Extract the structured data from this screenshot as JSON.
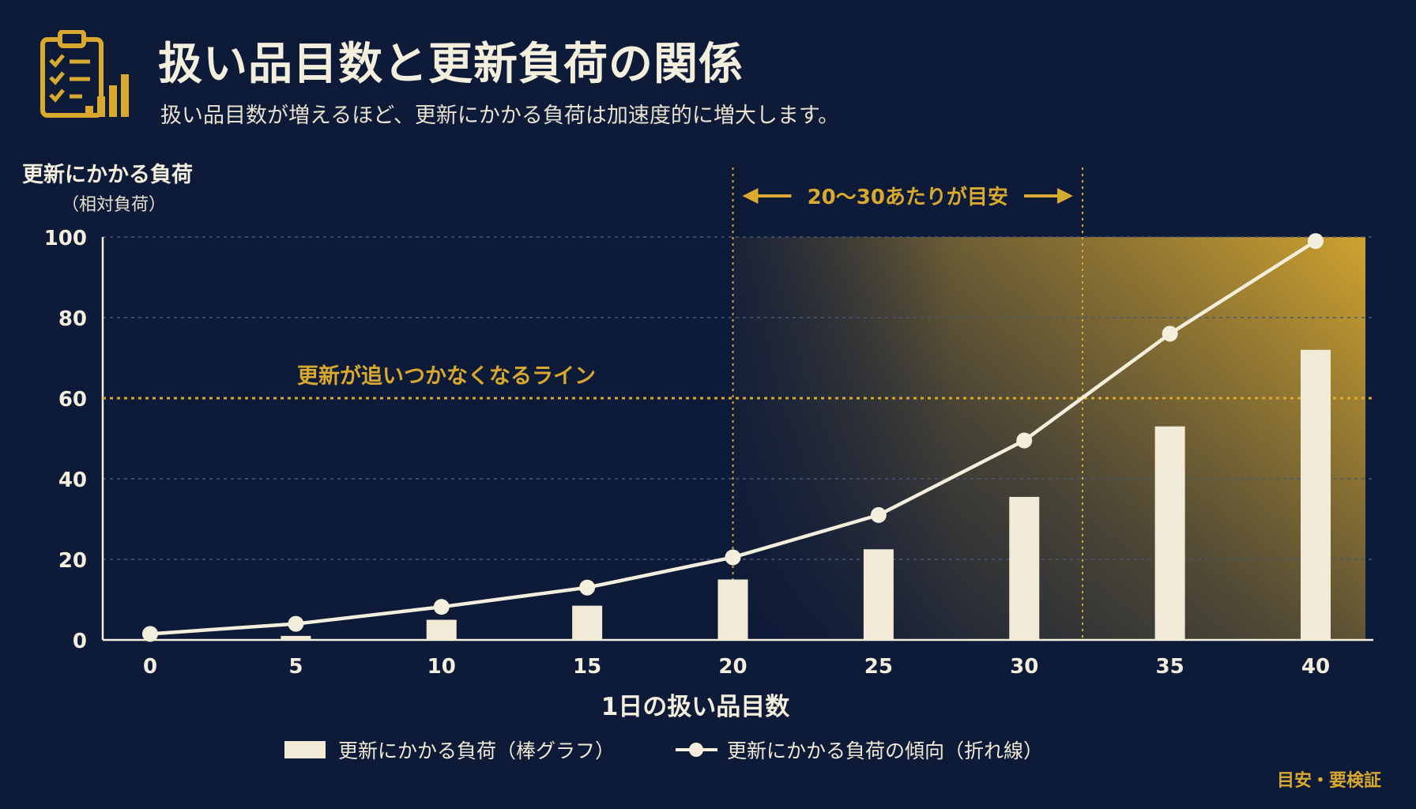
{
  "header": {
    "title": "扱い品目数と更新負荷の関係",
    "subtitle": "扱い品目数が増えるほど、更新にかかる負荷は加速度的に増大します。",
    "icon": "clipboard-chart-icon"
  },
  "footnote": "目安・要検証",
  "colors": {
    "background": "#0d1a38",
    "accent": "#d9a92f",
    "bar": "#f1ead6",
    "line": "#f4eedd",
    "grid": "#4a5675"
  },
  "chart_data": {
    "type": "bar",
    "title": "扱い品目数と更新負荷の関係",
    "ylabel": "更新にかかる負荷",
    "ylabel_sub": "（相対負荷）",
    "xlabel": "1日の扱い品目数",
    "x": [
      0,
      5,
      10,
      15,
      20,
      25,
      30,
      35,
      40
    ],
    "ylim": [
      0,
      100
    ],
    "yticks": [
      0,
      20,
      40,
      60,
      80,
      100
    ],
    "series": [
      {
        "name": "更新にかかる負荷（棒グラフ）",
        "type": "bar",
        "values": [
          0,
          1,
          5,
          8.5,
          15,
          22.5,
          35.5,
          53,
          72
        ]
      },
      {
        "name": "更新にかかる負荷の傾向（折れ線）",
        "type": "line",
        "values": [
          1.5,
          4,
          8.2,
          13,
          20.5,
          31,
          49.5,
          76,
          99
        ]
      }
    ],
    "threshold": {
      "value": 60,
      "label": "更新が追いつかなくなるライン"
    },
    "target_range": {
      "from": 20,
      "to": 32,
      "label": "20〜30あたりが目安"
    },
    "legend_position": "bottom",
    "grid": true
  }
}
